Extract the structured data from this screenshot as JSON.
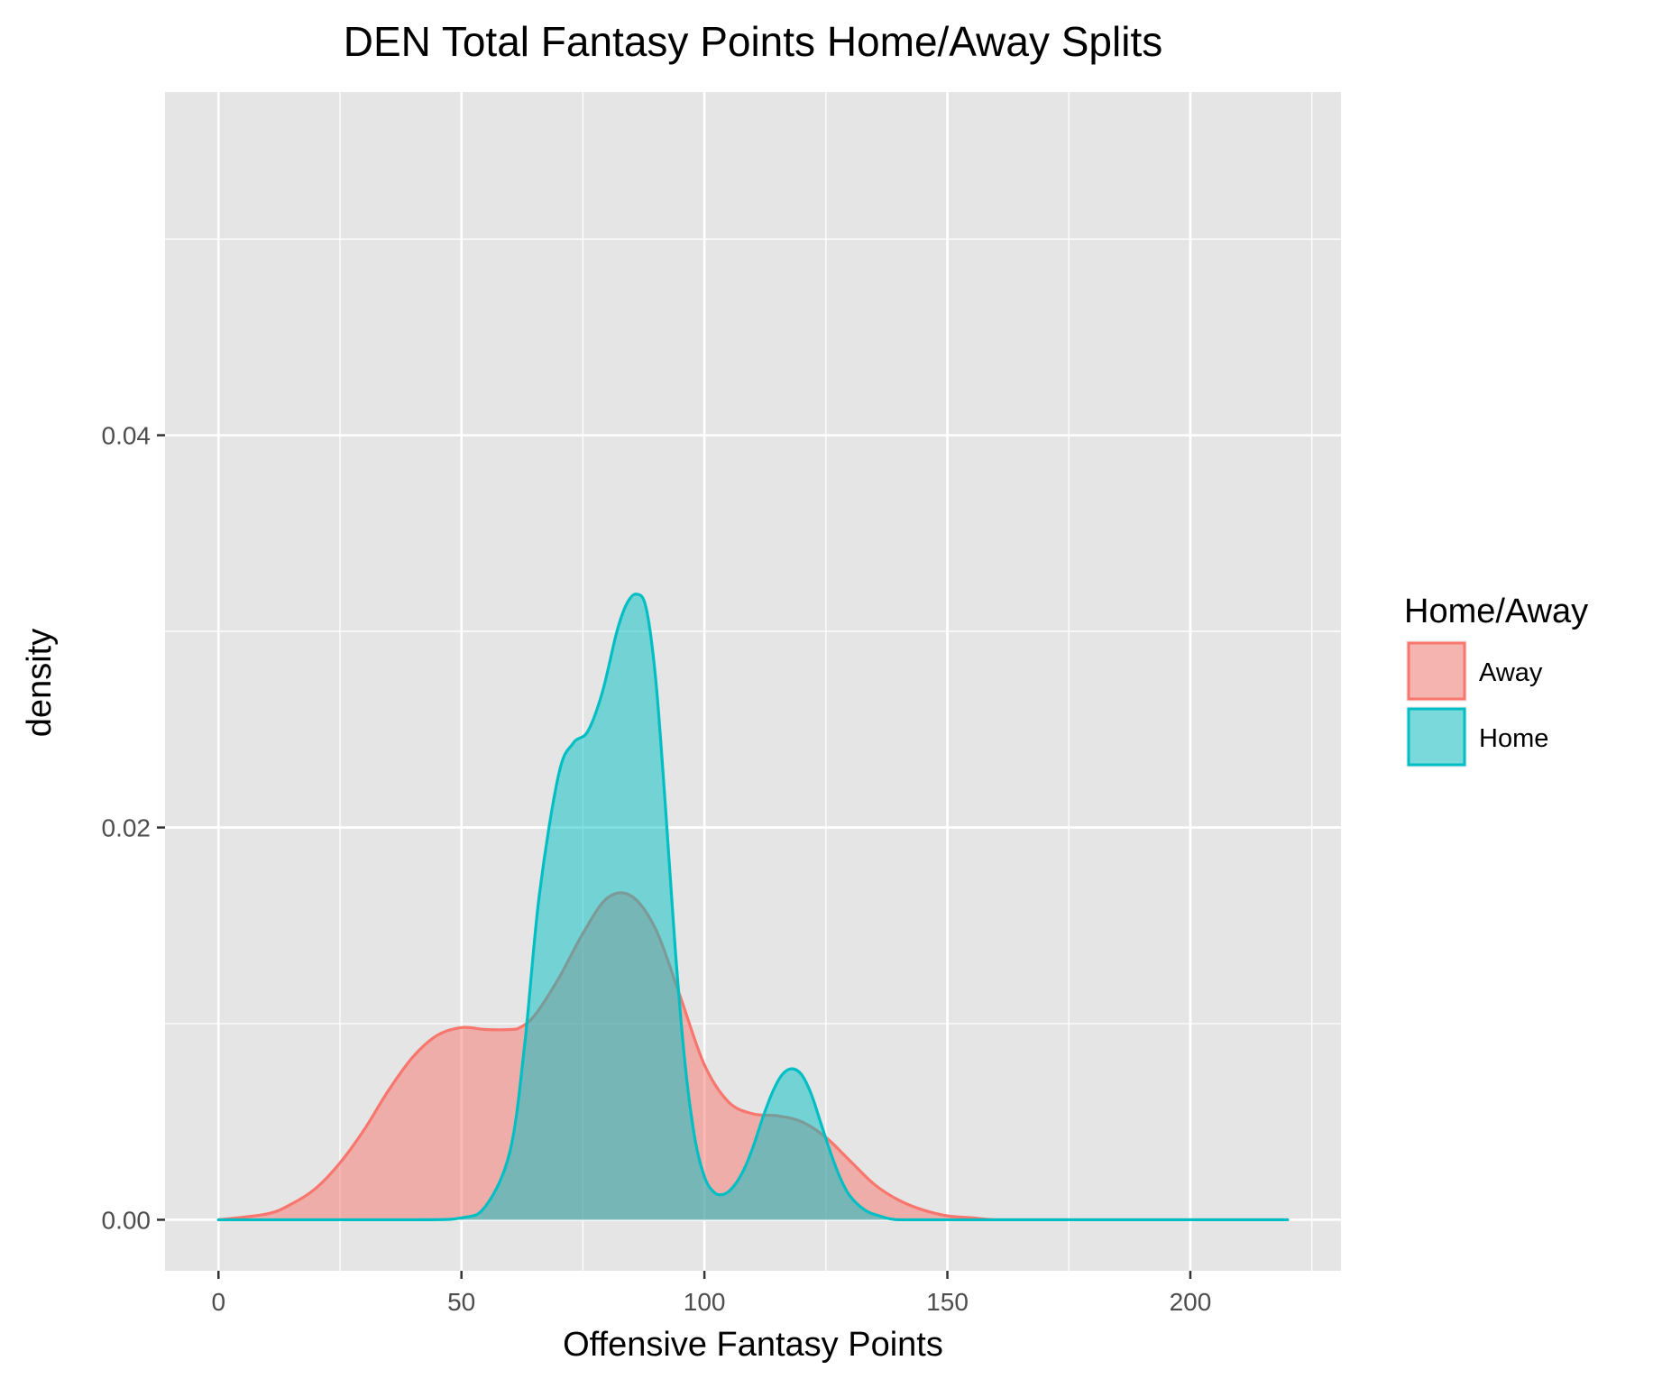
{
  "chart_data": {
    "type": "area",
    "subtype": "density",
    "title": "DEN Total Fantasy Points Home/Away Splits",
    "xlabel": "Offensive Fantasy Points",
    "ylabel": "density",
    "xlim": [
      -11,
      231
    ],
    "ylim": [
      -0.0026,
      0.0575
    ],
    "x_ticks": [
      0,
      50,
      100,
      150,
      200
    ],
    "x_tick_labels": [
      "0",
      "50",
      "100",
      "150",
      "200"
    ],
    "y_ticks": [
      0.0,
      0.02,
      0.04
    ],
    "y_tick_labels": [
      "0.00",
      "0.02",
      "0.04"
    ],
    "grid": true,
    "legend": {
      "title": "Home/Away",
      "position": "right",
      "items": [
        {
          "label": "Away",
          "fill": "#F8766D",
          "stroke": "#F8766D"
        },
        {
          "label": "Home",
          "fill": "#00BFC4",
          "stroke": "#00BFC4"
        }
      ]
    },
    "colors": {
      "panel_background": "#E5E5E5",
      "grid_line": "#FFFFFF",
      "away": "#F8766D",
      "home": "#00BFC4"
    },
    "fill_opacity": 0.5,
    "series": [
      {
        "name": "Away",
        "x": [
          0,
          10,
          15,
          20,
          25,
          30,
          35,
          40,
          45,
          50,
          55,
          60,
          62,
          65,
          70,
          75,
          80,
          85,
          90,
          95,
          100,
          105,
          110,
          115,
          120,
          125,
          130,
          135,
          140,
          145,
          150,
          155,
          160,
          170,
          180,
          200,
          220
        ],
        "y": [
          0.0,
          0.0003,
          0.0008,
          0.0016,
          0.0029,
          0.0046,
          0.0066,
          0.0083,
          0.0094,
          0.0098,
          0.0097,
          0.0097,
          0.0098,
          0.0104,
          0.0123,
          0.0146,
          0.0164,
          0.0165,
          0.0148,
          0.0114,
          0.0079,
          0.006,
          0.0054,
          0.0053,
          0.005,
          0.0042,
          0.003,
          0.0018,
          0.001,
          0.0005,
          0.0002,
          0.0001,
          0.0,
          0.0,
          0.0,
          0.0,
          0.0
        ]
      },
      {
        "name": "Home",
        "x": [
          0,
          40,
          50,
          55,
          60,
          63,
          66,
          70,
          73,
          76,
          79,
          82,
          84,
          86,
          88,
          90,
          92,
          94,
          96,
          98,
          100,
          102,
          104,
          106,
          108,
          110,
          112,
          114,
          116,
          118,
          120,
          122,
          124,
          126,
          128,
          130,
          133,
          136,
          140,
          150,
          220
        ],
        "y": [
          0.0,
          0.0,
          0.0001,
          0.0007,
          0.0035,
          0.0089,
          0.0165,
          0.0227,
          0.0243,
          0.0249,
          0.0269,
          0.03,
          0.0314,
          0.0319,
          0.0312,
          0.0275,
          0.021,
          0.0138,
          0.008,
          0.0042,
          0.0022,
          0.0014,
          0.0013,
          0.0017,
          0.0025,
          0.0037,
          0.0052,
          0.0065,
          0.0074,
          0.0077,
          0.0074,
          0.0064,
          0.0049,
          0.0034,
          0.0021,
          0.0012,
          0.0005,
          0.0002,
          0.0,
          0.0,
          0.0
        ]
      }
    ]
  }
}
